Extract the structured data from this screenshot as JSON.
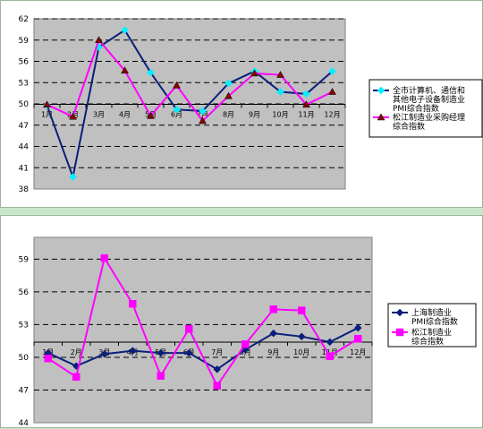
{
  "chart_data": [
    {
      "type": "line",
      "categories": [
        "1月",
        "2月",
        "3月",
        "4月",
        "5月",
        "6月",
        "7月",
        "8月",
        "9月",
        "10月",
        "11月",
        "12月"
      ],
      "y_ticks": [
        38,
        41,
        44,
        47,
        50,
        53,
        56,
        59,
        62
      ],
      "ylim": [
        38,
        62
      ],
      "grid": true,
      "legend_position": "right",
      "series": [
        {
          "name": "全市计算机、通信和其他电子设备制造业PMI综合指数",
          "legend_lines": [
            "全市计算机、通信和",
            "其他电子设备制造业",
            "PMI综合指数"
          ],
          "values": [
            49.8,
            39.7,
            58.0,
            60.4,
            54.4,
            49.2,
            49.0,
            52.9,
            54.6,
            51.7,
            51.4,
            54.6
          ],
          "line_color": "#0a1f7a",
          "marker_color": "#00f0ff",
          "marker": "diamond"
        },
        {
          "name": "松江制造业采购经理综合指数",
          "legend_lines": [
            "松江制造业采购经理",
            "综合指数"
          ],
          "values": [
            49.9,
            48.2,
            59.0,
            54.7,
            48.3,
            52.6,
            47.6,
            51.1,
            54.3,
            54.1,
            49.9,
            51.7
          ],
          "line_color": "#ff00ff",
          "marker_color": "#8b0000",
          "marker": "triangle"
        }
      ]
    },
    {
      "type": "line",
      "categories": [
        "1月",
        "2月",
        "3月",
        "4月",
        "5月",
        "6月",
        "7月",
        "8月",
        "9月",
        "10月",
        "11月",
        "12月"
      ],
      "y_ticks": [
        44,
        47,
        50,
        53,
        56,
        59
      ],
      "ylim": [
        44,
        61
      ],
      "grid": true,
      "legend_position": "right",
      "series": [
        {
          "name": "上海制造业PMI综合指数",
          "legend_lines": [
            "上海制造业",
            "PMI综合指数"
          ],
          "values": [
            50.4,
            49.2,
            50.3,
            50.6,
            50.4,
            50.4,
            48.9,
            50.7,
            52.2,
            51.9,
            51.4,
            52.7
          ],
          "line_color": "#0a1f7a",
          "marker_color": "#0a1f7a",
          "marker": "diamond"
        },
        {
          "name": "松江制造业综合指数",
          "legend_lines": [
            "松江制造业",
            "综合指数"
          ],
          "values": [
            49.9,
            48.2,
            59.1,
            54.9,
            48.3,
            52.6,
            47.4,
            51.2,
            54.4,
            54.3,
            50.1,
            51.7
          ],
          "line_color": "#ff00ff",
          "marker_color": "#ff00ff",
          "marker": "square"
        }
      ]
    }
  ]
}
